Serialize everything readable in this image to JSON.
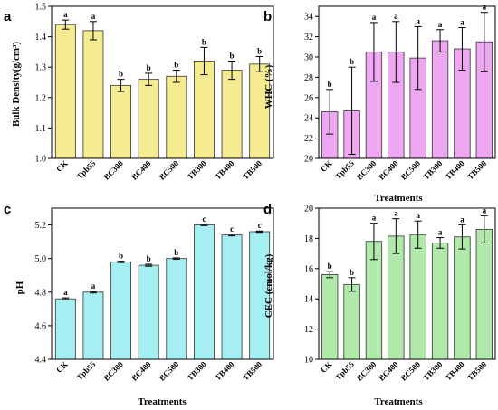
{
  "chart_data": [
    {
      "type": "bar",
      "panel": "a",
      "categories": [
        "CK",
        "Tpb55",
        "BC300",
        "BC400",
        "BC500",
        "TB300",
        "TB400",
        "TB500"
      ],
      "values": [
        1.44,
        1.42,
        1.24,
        1.26,
        1.27,
        1.32,
        1.29,
        1.31
      ],
      "errors": [
        0.015,
        0.03,
        0.02,
        0.02,
        0.02,
        0.045,
        0.03,
        0.025
      ],
      "significance": [
        "a",
        "a",
        "b",
        "b",
        "b",
        "b",
        "b",
        "b"
      ],
      "xlabel": "",
      "ylabel": "Bulk Density(g/cm³)",
      "ylim": [
        1.0,
        1.5
      ],
      "yticks": [
        "1.0",
        "1.1",
        "1.2",
        "1.3",
        "1.4",
        "1.5"
      ],
      "color": "#f5eb91"
    },
    {
      "type": "bar",
      "panel": "b",
      "categories": [
        "CK",
        "Tpb55",
        "BC300",
        "BC400",
        "BC500",
        "TB300",
        "TB400",
        "TB500"
      ],
      "values": [
        24.6,
        24.7,
        30.5,
        30.5,
        29.9,
        31.6,
        30.8,
        31.5
      ],
      "errors": [
        2.2,
        4.3,
        2.9,
        3.0,
        3.1,
        1.1,
        2.1,
        2.9
      ],
      "significance": [
        "b",
        "b",
        "a",
        "a",
        "a",
        "a",
        "a",
        "a"
      ],
      "xlabel": "Treatments",
      "ylabel": "WHC (%)",
      "ylim": [
        20,
        35
      ],
      "yticks": [
        "20",
        "22",
        "24",
        "26",
        "28",
        "30",
        "32",
        "34"
      ],
      "color": "#eea8f2"
    },
    {
      "type": "bar",
      "panel": "c",
      "categories": [
        "CK",
        "Tpb55",
        "BC300",
        "BC400",
        "BC500",
        "TB300",
        "TB400",
        "TB500"
      ],
      "values": [
        4.76,
        4.8,
        4.98,
        4.96,
        5.0,
        5.2,
        5.14,
        5.16
      ],
      "errors": [
        0.006,
        0.005,
        0.004,
        0.006,
        0.004,
        0.004,
        0.005,
        0.004
      ],
      "significance": [
        "a",
        "a",
        "b",
        "b",
        "b",
        "c",
        "c",
        "c"
      ],
      "xlabel": "Treatments",
      "ylabel": "pH",
      "ylim": [
        4.4,
        5.3
      ],
      "yticks": [
        "4.4",
        "4.6",
        "4.8",
        "5.0",
        "5.2"
      ],
      "color": "#a5eef2"
    },
    {
      "type": "bar",
      "panel": "d",
      "categories": [
        "CK",
        "Tpb55",
        "BC300",
        "BC400",
        "BC500",
        "TB300",
        "TB400",
        "TB500"
      ],
      "values": [
        15.6,
        14.95,
        17.8,
        18.15,
        18.25,
        17.7,
        18.1,
        18.6
      ],
      "errors": [
        0.2,
        0.45,
        1.2,
        1.15,
        0.9,
        0.35,
        0.8,
        0.9
      ],
      "significance": [
        "b",
        "b",
        "a",
        "a",
        "a",
        "a",
        "a",
        "a"
      ],
      "xlabel": "Treatments",
      "ylabel": "CEC (cmol/kg)",
      "ylim": [
        10,
        20
      ],
      "yticks": [
        "10",
        "12",
        "14",
        "16",
        "18",
        "20"
      ],
      "color": "#b1e9ab"
    }
  ]
}
